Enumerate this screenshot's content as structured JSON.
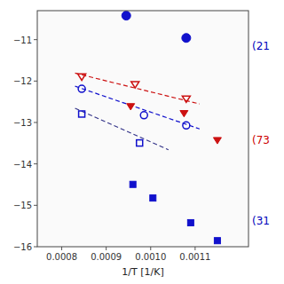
{
  "chart_data": {
    "type": "scatter",
    "title": "",
    "xlabel": "1/T [1/K]",
    "ylabel": "",
    "log": "y",
    "grid": false,
    "xlim": [
      0.000745,
      0.00122
    ],
    "ylim": [
      1e-16,
      5.011872336272714e-11
    ],
    "xticks": [
      0.0008,
      0.0009,
      {
        "value": 0.001,
        "label": "0.0010"
      },
      0.0011
    ],
    "yticks": [
      {
        "value": 1e-16,
        "label": "−16"
      },
      {
        "value": 1e-15,
        "label": "−15"
      },
      {
        "value": 1e-14,
        "label": "−14"
      },
      {
        "value": 1e-13,
        "label": "−13"
      },
      {
        "value": 1e-12,
        "label": "−12"
      },
      {
        "value": 1e-11,
        "label": "−11"
      }
    ],
    "series": [
      {
        "type": "scatter",
        "marker": "circle",
        "color": "#1111cc",
        "x": [
          0.000945,
          0.00108
        ],
        "values": [
          3.8e-11,
          1.1e-11
        ]
      },
      {
        "type": "scatter",
        "marker": "triangle-down",
        "color": "#cc1111",
        "x": [
          0.000955,
          0.001075,
          0.00115
        ],
        "values": [
          2.5e-13,
          1.7e-13,
          3.8e-14
        ]
      },
      {
        "type": "scatter",
        "marker": "square",
        "color": "#1111cc",
        "x": [
          0.00096,
          0.001005,
          0.00109,
          0.00115
        ],
        "values": [
          3.2e-15,
          1.5e-15,
          3.8e-16,
          1.4e-16
        ]
      },
      {
        "type": "scatter",
        "marker": "triangle-down-open",
        "color": "#cc1111",
        "x": [
          0.000845,
          0.000965,
          0.00108
        ],
        "values": [
          1.3e-12,
          8.5e-13,
          3.8e-13
        ]
      },
      {
        "type": "scatter",
        "marker": "circle-open",
        "color": "#1111cc",
        "x": [
          0.000845,
          0.000985,
          0.00108
        ],
        "values": [
          6.5e-13,
          1.5e-13,
          8.5e-14
        ]
      },
      {
        "type": "scatter",
        "marker": "square-open",
        "color": "#1111cc",
        "x": [
          0.000845,
          0.000975
        ],
        "values": [
          1.6e-13,
          3.2e-14
        ]
      },
      {
        "type": "line",
        "line_style": "dashed",
        "color": "#cc1111",
        "x": [
          0.00083,
          0.00111
        ],
        "values": [
          1.55e-12,
          2.8e-13
        ]
      },
      {
        "type": "line",
        "line_style": "dashed",
        "color": "#1111cc",
        "x": [
          0.00083,
          0.00111
        ],
        "values": [
          7.5e-13,
          7e-14
        ]
      },
      {
        "type": "line",
        "line_style": "dashed",
        "color": "#333388",
        "x": [
          0.00083,
          0.00104
        ],
        "values": [
          2.2e-13,
          2.2e-14
        ]
      }
    ],
    "annotations": [
      {
        "text": "(21",
        "color": "#0000bb"
      },
      {
        "text": "(73",
        "color": "#cc0000"
      },
      {
        "text": "(31",
        "color": "#0000bb"
      }
    ]
  }
}
